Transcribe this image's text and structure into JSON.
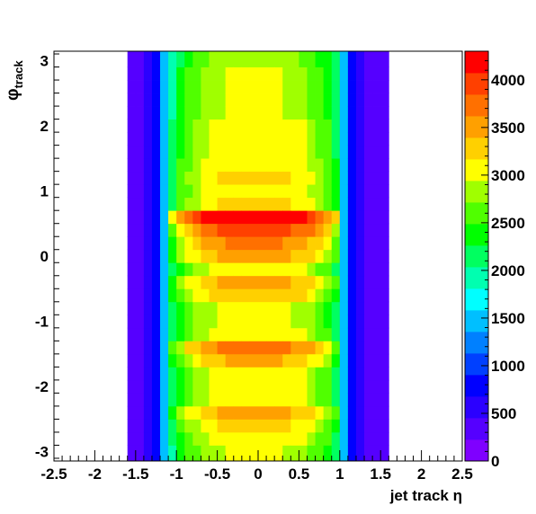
{
  "chart_data": {
    "type": "heatmap",
    "xlabel": "jet track η",
    "ylabel": "φ",
    "ylabel_sub": "track",
    "xlim": [
      -2.5,
      2.5
    ],
    "ylim": [
      -3.1416,
      3.1416
    ],
    "x_ticks": [
      -2.5,
      -2,
      -1.5,
      -1,
      -0.5,
      0,
      0.5,
      1,
      1.5,
      2,
      2.5
    ],
    "x_tick_labels": [
      "-2.5",
      "-2",
      "-1.5",
      "-1",
      "-0.5",
      "0",
      "0.5",
      "1",
      "1.5",
      "2",
      "2.5"
    ],
    "y_ticks": [
      -3,
      -2,
      -1,
      0,
      1,
      2,
      3
    ],
    "y_tick_labels": [
      "-3",
      "-2",
      "-1",
      "0",
      "1",
      "2",
      "3"
    ],
    "z_range": [
      0,
      4300
    ],
    "z_ticks": [
      0,
      500,
      1000,
      1500,
      2000,
      2500,
      3000,
      3500,
      4000
    ],
    "z_tick_labels": [
      "0",
      "500",
      "1000",
      "1500",
      "2000",
      "2500",
      "3000",
      "3500",
      "4000"
    ],
    "palette": [
      "#7f00ff",
      "#5500ff",
      "#2b00ff",
      "#0000ff",
      "#0040ff",
      "#0080ff",
      "#00bfff",
      "#00ffff",
      "#00ffb0",
      "#00ff60",
      "#00ff00",
      "#50ff00",
      "#a0ff00",
      "#ffff00",
      "#ffd000",
      "#ffa000",
      "#ff7000",
      "#ff4000",
      "#ff0000"
    ],
    "grid": false,
    "x_bin_edges": [
      -1.6,
      -1.5,
      -1.4,
      -1.3,
      -1.2,
      -1.1,
      -1.0,
      -0.9,
      -0.8,
      -0.7,
      -0.6,
      -0.5,
      -0.4,
      -0.3,
      -0.2,
      -0.1,
      0.0,
      0.1,
      0.2,
      0.3,
      0.4,
      0.5,
      0.6,
      0.7,
      0.8,
      0.9,
      1.0,
      1.1,
      1.2,
      1.3,
      1.4,
      1.5,
      1.6
    ],
    "y_bin_edges": [
      -3.1416,
      -2.9,
      -2.7,
      -2.5,
      -2.3,
      -2.1,
      -1.9,
      -1.7,
      -1.5,
      -1.3,
      -1.1,
      -0.9,
      -0.7,
      -0.5,
      -0.3,
      -0.1,
      0.1,
      0.3,
      0.5,
      0.7,
      0.9,
      1.1,
      1.3,
      1.5,
      1.7,
      1.9,
      2.1,
      2.3,
      2.5,
      2.7,
      2.9,
      3.1416
    ],
    "eta_profile": [
      350,
      450,
      550,
      700,
      1400,
      2100,
      2450,
      2650,
      2800,
      2900,
      3000,
      3050,
      3100,
      3100,
      3100,
      3100,
      3100,
      3100,
      3100,
      3050,
      3000,
      2950,
      2850,
      2700,
      2500,
      2250,
      1400,
      700,
      550,
      450,
      350,
      300
    ],
    "phi_profile": [
      0.95,
      1.0,
      1.05,
      1.12,
      1.0,
      1.0,
      1.0,
      1.1,
      1.2,
      1.0,
      0.98,
      0.98,
      1.08,
      1.12,
      1.0,
      1.12,
      1.18,
      1.28,
      1.42,
      1.05,
      1.02,
      1.05,
      1.02,
      1.0,
      1.0,
      1.0,
      0.95,
      0.95,
      0.95,
      0.95,
      0.92
    ]
  }
}
